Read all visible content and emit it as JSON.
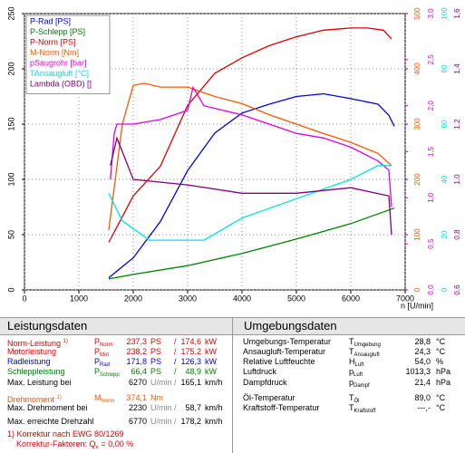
{
  "chart_data": {
    "type": "line",
    "xlabel": "n [U/min]",
    "legend_position": "upper left",
    "grid": true,
    "xlim": [
      0,
      7000
    ],
    "xticks": [
      0,
      1000,
      2000,
      3000,
      4000,
      5000,
      6000,
      7000
    ],
    "ylim": [
      0,
      250
    ],
    "yticks": [
      0,
      50,
      100,
      150,
      200,
      250
    ],
    "y2lim": [
      0,
      500
    ],
    "y2ticks": [
      0,
      100,
      200,
      300,
      400,
      500
    ],
    "y3lim": [
      0,
      3
    ],
    "y3ticks": [
      {
        "value": 0,
        "label": "0,0"
      },
      {
        "value": 0.5,
        "label": "0,5"
      },
      {
        "value": 1,
        "label": "1,0"
      },
      {
        "value": 1.5,
        "label": "1,5"
      },
      {
        "value": 2,
        "label": "2,0"
      },
      {
        "value": 2.5,
        "label": "2,5"
      },
      {
        "value": 3,
        "label": "3,0"
      }
    ],
    "y4lim": [
      0,
      100
    ],
    "y4ticks": [
      0,
      20,
      40,
      60,
      80,
      100
    ],
    "y5lim": [
      0.6,
      1.6
    ],
    "y5ticks": [
      {
        "value": 0.6,
        "label": "0,6"
      },
      {
        "value": 0.8,
        "label": "0,8"
      },
      {
        "value": 1.0,
        "label": "1,0"
      },
      {
        "value": 1.2,
        "label": "1,2"
      },
      {
        "value": 1.4,
        "label": "1,4"
      },
      {
        "value": 1.6,
        "label": "1,6"
      }
    ],
    "series": [
      {
        "name": "P-Rad [PS]",
        "color": "#0000dd",
        "axis": "y",
        "x": [
          1550,
          2000,
          2500,
          3000,
          3500,
          4000,
          4500,
          5000,
          5500,
          6000,
          6500,
          6700,
          6800
        ],
        "values": [
          11,
          29,
          62,
          108,
          142,
          160,
          168,
          175,
          177.5,
          173,
          168,
          158,
          148
        ]
      },
      {
        "name": "P-Schlepp [PS]",
        "color": "#008000",
        "axis": "y",
        "x": [
          1550,
          2000,
          3000,
          4000,
          5000,
          6000,
          6800
        ],
        "values": [
          10,
          14,
          22,
          33,
          46,
          60,
          74
        ]
      },
      {
        "name": "P-Norm [PS]",
        "color": "#e00000",
        "axis": "y",
        "x": [
          1550,
          2000,
          2500,
          3000,
          3500,
          4000,
          4500,
          5000,
          5500,
          6000,
          6300,
          6600,
          6750
        ],
        "values": [
          43,
          85,
          112,
          167,
          196,
          210,
          221,
          229,
          235,
          237,
          237,
          235,
          227
        ]
      },
      {
        "name": "M-Norm [Nm]",
        "color": "#ff5500",
        "axis": "y2",
        "x": [
          1550,
          1800,
          2000,
          2200,
          2500,
          3000,
          3500,
          4000,
          4500,
          5000,
          5500,
          6000,
          6500,
          6750
        ],
        "values": [
          108,
          300,
          370,
          374,
          367,
          367,
          350,
          337,
          317,
          300,
          283,
          267,
          247,
          225
        ]
      },
      {
        "name": "pSaugrohr [bar]",
        "color": "#e000e0",
        "axis": "y3",
        "x": [
          1580,
          1650,
          1700,
          2000,
          2500,
          3000,
          3100,
          3300,
          4000,
          4500,
          5000,
          5500,
          6000,
          6500,
          6700,
          6750
        ],
        "values": [
          1.2,
          1.7,
          1.8,
          1.8,
          1.85,
          1.95,
          2.2,
          2.0,
          1.9,
          1.8,
          1.7,
          1.65,
          1.55,
          1.4,
          1.3,
          0.9
        ]
      },
      {
        "name": "TAnsaugluft [°C]",
        "color": "#00e0e0",
        "axis": "y4",
        "x": [
          1550,
          1800,
          2300,
          3300,
          4000,
          5000,
          6000,
          6500,
          6750
        ],
        "values": [
          35,
          25,
          18,
          18,
          26,
          33,
          40,
          45,
          45
        ]
      },
      {
        "name": "Lambda (OBD) []",
        "color": "#800080",
        "axis": "y5",
        "x": [
          1580,
          1700,
          2000,
          3000,
          4000,
          5000,
          6000,
          6700,
          6750
        ],
        "values": [
          1.05,
          1.15,
          1.0,
          0.98,
          0.95,
          0.95,
          0.97,
          0.94,
          0.8
        ]
      }
    ]
  },
  "leistungsdaten": {
    "title": "Leistungsdaten",
    "separator": "/",
    "rows": [
      {
        "label": "Norm-Leistung",
        "note": "1)",
        "color": "#e00000",
        "sym": "P",
        "sub": "Norm",
        "v1": "237,3",
        "u1": "PS",
        "v2": "174,6",
        "u2": "kW"
      },
      {
        "label": "Motorleistung",
        "color": "#e00000",
        "sym": "P",
        "sub": "Mot",
        "v1": "238,2",
        "u1": "PS",
        "v2": "175,2",
        "u2": "kW"
      },
      {
        "label": "Radleistung",
        "color": "#0000dd",
        "sym": "P",
        "sub": "Rad",
        "v1": "171,8",
        "u1": "PS",
        "v2": "126,3",
        "u2": "kW"
      },
      {
        "label": "Schleppleistung",
        "color": "#008000",
        "sym": "P",
        "sub": "Schlepp",
        "v1": "66,4",
        "u1": "PS",
        "v2": "48,9",
        "u2": "kW"
      },
      {
        "label": "Max. Leistung bei",
        "color": "#000000",
        "v1": "6270",
        "u1": "U/min",
        "v2": "165,1",
        "u2": "km/h"
      },
      {
        "label": "Drehmoment",
        "note": "1)",
        "color": "#ff5500",
        "sym": "M",
        "sub": "Norm",
        "v1": "374,1",
        "u1": "Nm"
      },
      {
        "label": "Max. Drehmoment bei",
        "color": "#000000",
        "v1": "2230",
        "u1": "U/min",
        "v2": "58,7",
        "u2": "km/h"
      },
      {
        "label": "Max. erreichte Drehzahl",
        "color": "#000000",
        "v1": "6770",
        "u1": "U/min",
        "v2": "178,2",
        "u2": "km/h"
      }
    ],
    "footnote": "1) Korrektur nach EWG 80/1269",
    "factor": {
      "text": "Korrektur-Faktoren: Q",
      "sub": "v",
      "value": "=  0,00 %"
    }
  },
  "umgebungsdaten": {
    "title": "Umgebungsdaten",
    "rows": [
      {
        "label": "Umgebungs-Temperatur",
        "sym": "T",
        "sub": "Umgebung",
        "v": "28,8",
        "u": "°C"
      },
      {
        "label": "Ansaugluft-Temperatur",
        "sym": "T",
        "sub": "Ansaugluft",
        "v": "24,3",
        "u": "°C"
      },
      {
        "label": "Relative Luftfeuchte",
        "sym": "H",
        "sub": "Luft",
        "v": "54,0",
        "u": "%"
      },
      {
        "label": "Luftdruck",
        "sym": "p",
        "sub": "Luft",
        "v": "1013,3",
        "u": "hPa"
      },
      {
        "label": "Dampfdruck",
        "sym": "p",
        "sub": "Dampf",
        "v": "21,4",
        "u": "hPa"
      },
      {
        "label": "Öl-Temperatur",
        "sym": "T",
        "sub": "Öl",
        "v": "89,0",
        "u": "°C"
      },
      {
        "label": "Kraftstoff-Temperatur",
        "sym": "T",
        "sub": "Kraftstoff",
        "v": "---,-",
        "u": "°C"
      }
    ]
  }
}
